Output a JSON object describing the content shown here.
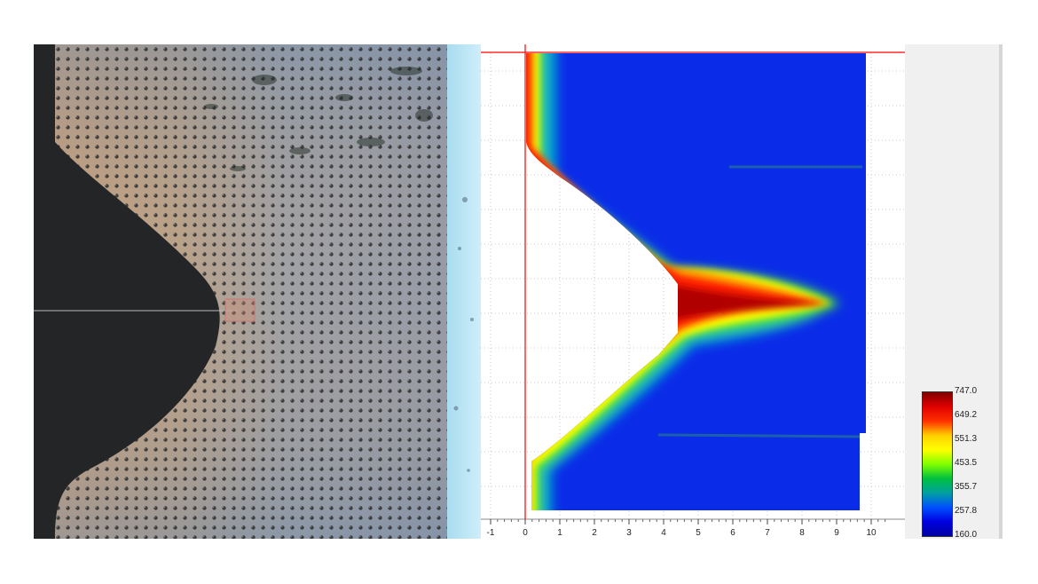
{
  "heatmap_axis": {
    "x_ticks": [
      "-1",
      "0",
      "1",
      "2",
      "3",
      "4",
      "5",
      "6",
      "7",
      "8",
      "9",
      "10"
    ]
  },
  "colorbar": {
    "labels": [
      "747.0",
      "649.2",
      "551.3",
      "453.5",
      "355.7",
      "257.8",
      "160.0"
    ],
    "stops": [
      "#7f0000",
      "#e00000",
      "#ff3000",
      "#ffd000",
      "#ffff00",
      "#80ff00",
      "#00c040",
      "#00a0a0",
      "#0050ff",
      "#0000e0",
      "#0000a0"
    ]
  },
  "colors": {
    "axis_red": "#ff0000",
    "micro_dark": "#222222",
    "micro_tan": "#c9a882",
    "micro_blue": "#8a9bb0"
  }
}
